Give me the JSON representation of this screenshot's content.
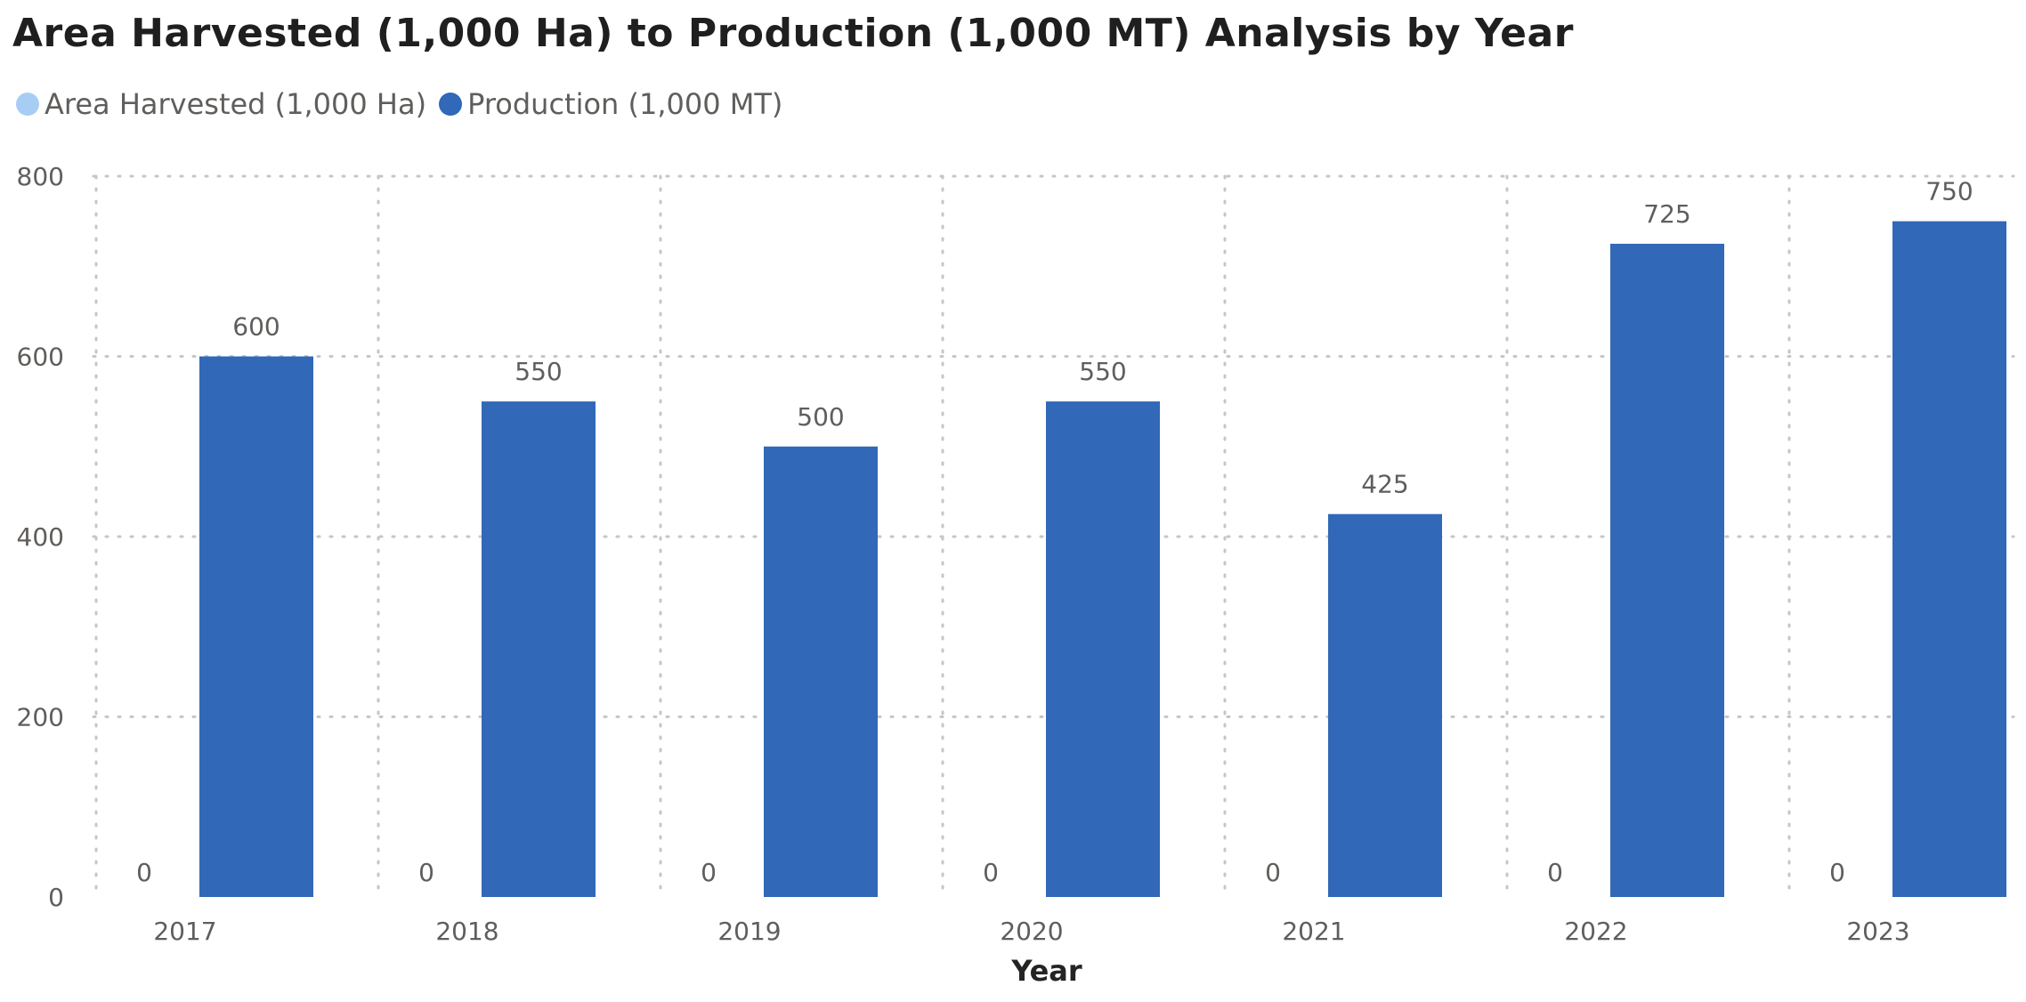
{
  "chart_data": {
    "type": "bar",
    "title": "Area Harvested (1,000 Ha) to Production (1,000 MT) Analysis by Year",
    "xlabel": "Year",
    "ylabel": "",
    "categories": [
      "2017",
      "2018",
      "2019",
      "2020",
      "2021",
      "2022",
      "2023"
    ],
    "series": [
      {
        "name": "Area Harvested (1,000 Ha)",
        "color": "#a8cdf5",
        "values": [
          0,
          0,
          0,
          0,
          0,
          0,
          0
        ]
      },
      {
        "name": "Production (1,000 MT)",
        "color": "#3168b7",
        "values": [
          600,
          550,
          500,
          550,
          425,
          725,
          750
        ]
      }
    ],
    "ylim": [
      0,
      800
    ],
    "yticks": [
      0,
      200,
      400,
      600,
      800
    ],
    "grid": true,
    "legend_position": "top-left",
    "data_labels": true
  }
}
